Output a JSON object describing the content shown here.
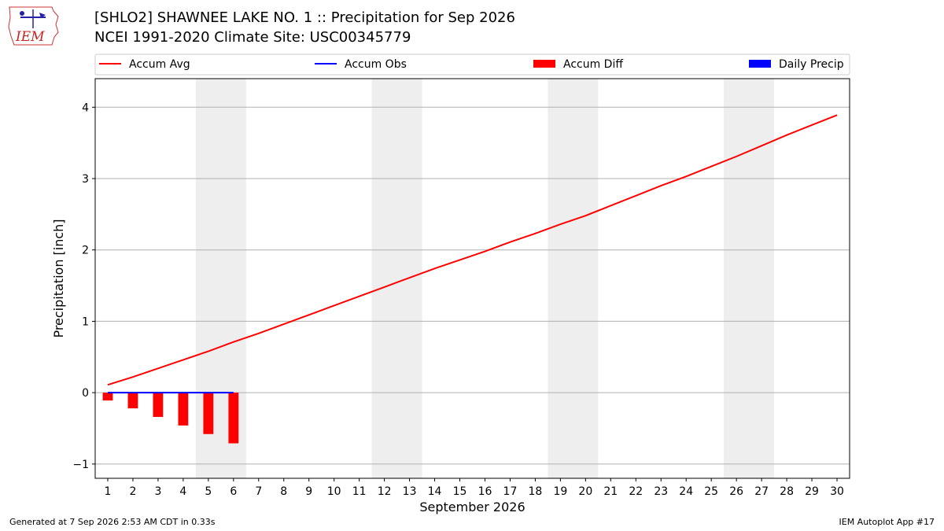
{
  "header": {
    "title_line1": "[SHLO2] SHAWNEE LAKE NO. 1 :: Precipitation for Sep 2026",
    "title_line2": "NCEI 1991-2020 Climate Site: USC00345779"
  },
  "logo": {
    "text": "IEM"
  },
  "footer": {
    "generated": "Generated at 7 Sep 2026 2:53 AM CDT in 0.33s",
    "app": "IEM Autoplot App #17"
  },
  "colors": {
    "accum_avg": "#ff0000",
    "accum_obs": "#0000ff",
    "accum_diff": "#ff0000",
    "daily_precip": "#0000ff",
    "weekend_shade": "#eeeeee",
    "grid": "#b0b0b0"
  },
  "chart_data": {
    "type": "line",
    "xlabel": "September 2026",
    "ylabel": "Precipitation [inch]",
    "xlim": [
      0.5,
      30.5
    ],
    "ylim": [
      -1.2,
      4.4
    ],
    "x": [
      1,
      2,
      3,
      4,
      5,
      6,
      7,
      8,
      9,
      10,
      11,
      12,
      13,
      14,
      15,
      16,
      17,
      18,
      19,
      20,
      21,
      22,
      23,
      24,
      25,
      26,
      27,
      28,
      29,
      30
    ],
    "x_tick_labels": [
      "1",
      "2",
      "3",
      "4",
      "5",
      "6",
      "7",
      "8",
      "9",
      "10",
      "11",
      "12",
      "13",
      "14",
      "15",
      "16",
      "17",
      "18",
      "19",
      "20",
      "21",
      "22",
      "23",
      "24",
      "25",
      "26",
      "27",
      "28",
      "29",
      "30"
    ],
    "y_ticks": [
      -1,
      0,
      1,
      2,
      3,
      4
    ],
    "y_tick_labels": [
      "−1",
      "0",
      "1",
      "2",
      "3",
      "4"
    ],
    "grid": "horizontal",
    "weekend_shading": [
      [
        5,
        6
      ],
      [
        12,
        13
      ],
      [
        19,
        20
      ],
      [
        26,
        27
      ]
    ],
    "legend": {
      "position": "top",
      "entries": [
        {
          "label": "Accum Avg",
          "kind": "line",
          "color": "#ff0000"
        },
        {
          "label": "Accum Obs",
          "kind": "line",
          "color": "#0000ff"
        },
        {
          "label": "Accum Diff",
          "kind": "bar",
          "color": "#ff0000"
        },
        {
          "label": "Daily Precip",
          "kind": "bar",
          "color": "#0000ff"
        }
      ]
    },
    "series": [
      {
        "name": "Accum Avg",
        "type": "line",
        "x": [
          1,
          2,
          3,
          4,
          5,
          6,
          7,
          8,
          9,
          10,
          11,
          12,
          13,
          14,
          15,
          16,
          17,
          18,
          19,
          20,
          21,
          22,
          23,
          24,
          25,
          26,
          27,
          28,
          29,
          30
        ],
        "values": [
          0.11,
          0.22,
          0.34,
          0.46,
          0.58,
          0.71,
          0.83,
          0.96,
          1.09,
          1.22,
          1.35,
          1.48,
          1.61,
          1.74,
          1.86,
          1.98,
          2.11,
          2.23,
          2.36,
          2.48,
          2.62,
          2.76,
          2.9,
          3.03,
          3.17,
          3.31,
          3.46,
          3.61,
          3.75,
          3.89
        ]
      },
      {
        "name": "Accum Obs",
        "type": "line",
        "x": [
          1,
          2,
          3,
          4,
          5,
          6
        ],
        "values": [
          0,
          0,
          0,
          0,
          0,
          0
        ]
      },
      {
        "name": "Accum Diff",
        "type": "bar",
        "x": [
          1,
          2,
          3,
          4,
          5,
          6
        ],
        "values": [
          -0.11,
          -0.22,
          -0.34,
          -0.46,
          -0.58,
          -0.71
        ]
      },
      {
        "name": "Daily Precip",
        "type": "bar",
        "x": [
          1,
          2,
          3,
          4,
          5,
          6
        ],
        "values": [
          0,
          0,
          0,
          0,
          0,
          0
        ]
      }
    ]
  }
}
